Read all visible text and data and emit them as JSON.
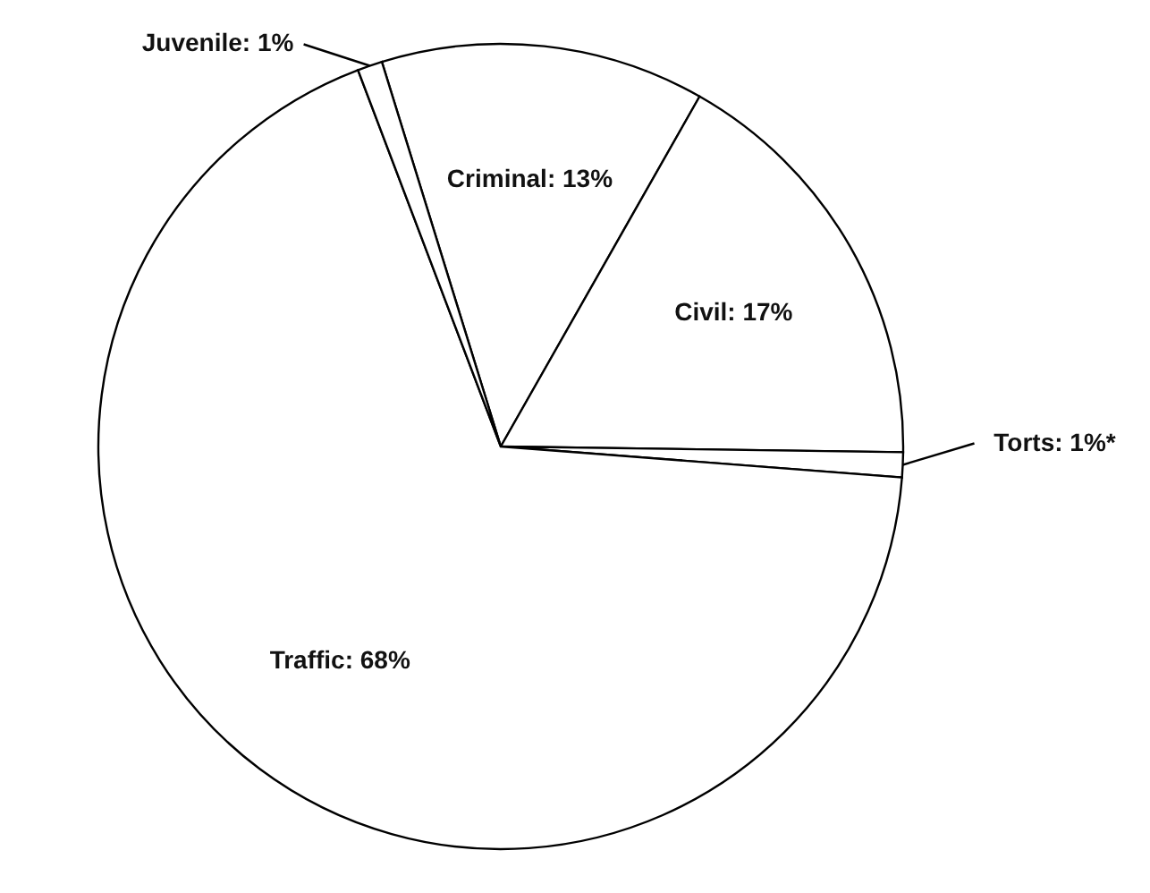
{
  "chart_data": {
    "type": "pie",
    "categories": [
      "Criminal",
      "Civil",
      "Torts",
      "Traffic",
      "Juvenile"
    ],
    "values": [
      13,
      17,
      1,
      68,
      1
    ],
    "value_labels": [
      "13%",
      "17%",
      "1%*",
      "68%",
      "1%"
    ],
    "colors": [
      "#ffffff",
      "#ffffff",
      "#ffffff",
      "#ffffff",
      "#ffffff"
    ]
  }
}
